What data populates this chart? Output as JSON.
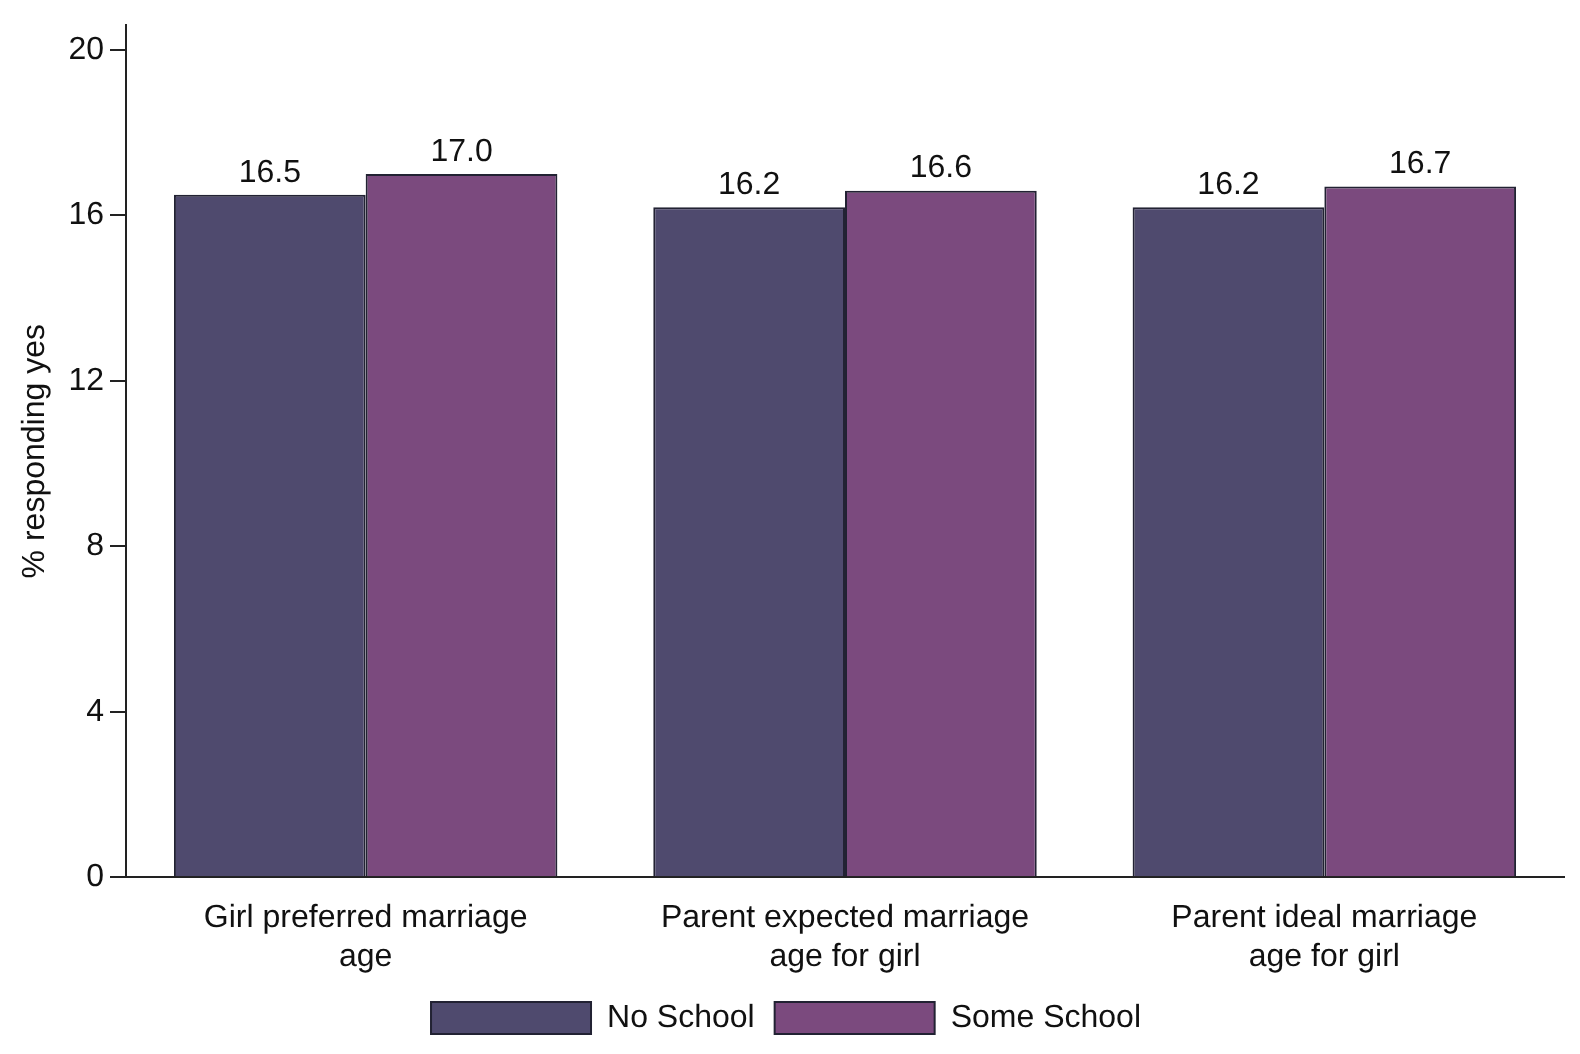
{
  "chart_data": {
    "type": "bar",
    "ylabel": "% responding yes",
    "categories": [
      "Girl preferred marriage age",
      "Parent expected marriage age for girl",
      "Parent ideal marriage age for girl"
    ],
    "series": [
      {
        "name": "No School",
        "color": "#4f4a6e",
        "values": [
          16.5,
          16.2,
          16.2
        ],
        "value_labels": [
          "16.5",
          "16.2",
          "16.2"
        ]
      },
      {
        "name": "Some School",
        "color": "#7b4a7e",
        "values": [
          17.0,
          16.6,
          16.7
        ],
        "value_labels": [
          "17.0",
          "16.6",
          "16.7"
        ]
      }
    ],
    "ylim": [
      0,
      20.6
    ],
    "yticks": [
      0,
      4,
      8,
      12,
      16,
      20
    ],
    "grid": false,
    "legend": "bottom"
  }
}
